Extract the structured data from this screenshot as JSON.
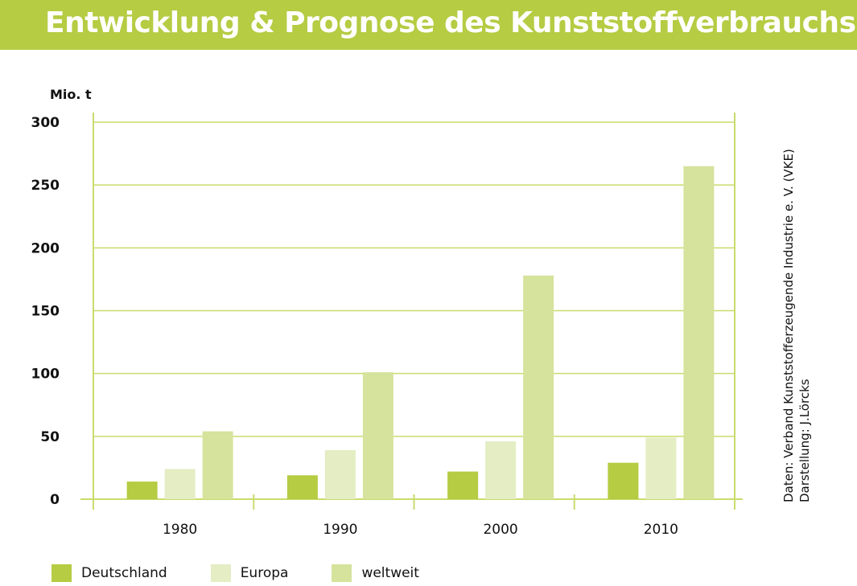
{
  "header": {
    "title": "Entwicklung & Prognose des Kunststoffverbrauchs"
  },
  "source_note": {
    "line1": "Daten: Verband Kunststofferzeugende Industrie e. V. (VKE)",
    "line2": "Darstellung: J.Lörcks"
  },
  "colors": {
    "banner": "#b5cc43",
    "grid": "#c9dc6c",
    "deutschland": "#b5cc43",
    "europa": "#e4edc3",
    "weltweit": "#d5e39c"
  },
  "chart_data": {
    "type": "bar",
    "title": "Entwicklung & Prognose des Kunststoffverbrauchs",
    "ylabel": "Mio. t",
    "xlabel": "",
    "categories": [
      "1980",
      "1990",
      "2000",
      "2010"
    ],
    "series": [
      {
        "name": "Deutschland",
        "values": [
          14,
          19,
          22,
          29
        ]
      },
      {
        "name": "Europa",
        "values": [
          24,
          39,
          46,
          49
        ]
      },
      {
        "name": "weltweit",
        "values": [
          54,
          101,
          178,
          265
        ]
      }
    ],
    "ylim": [
      0,
      300
    ],
    "yticks": [
      "0",
      "50",
      "100",
      "150",
      "200",
      "250",
      "300"
    ],
    "grid": true,
    "legend_position": "bottom-left"
  }
}
